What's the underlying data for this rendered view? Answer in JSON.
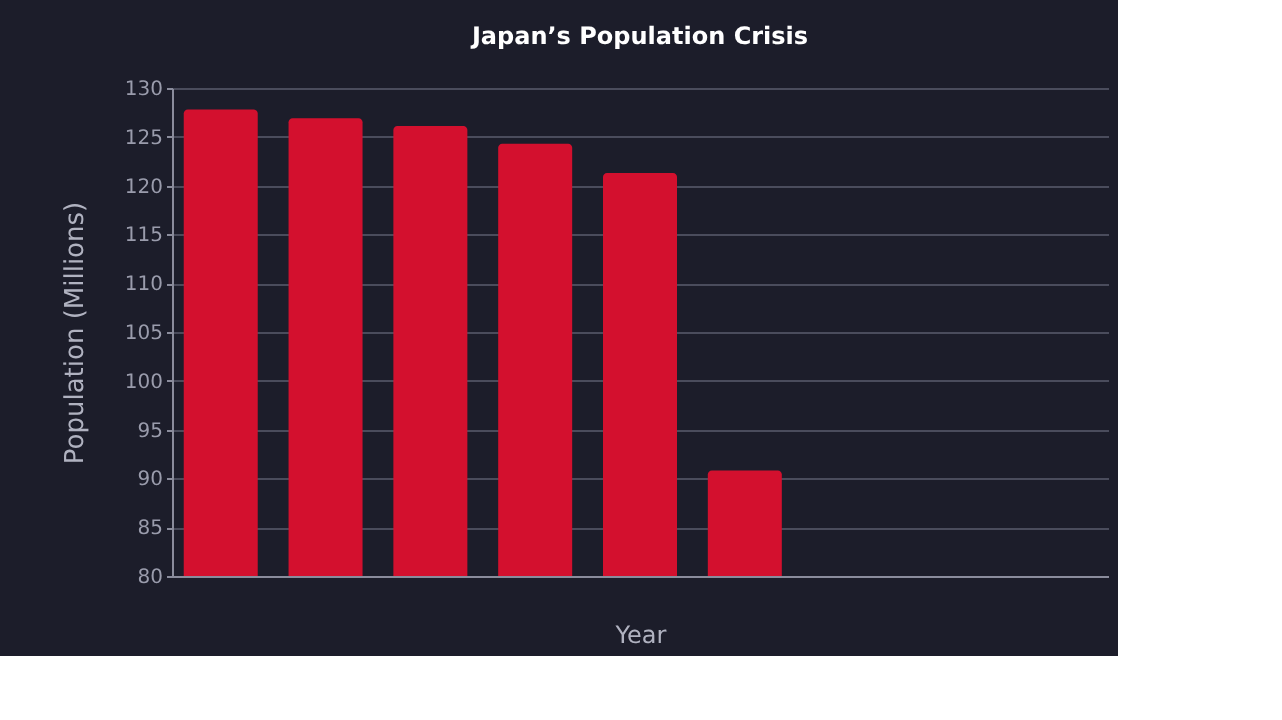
{
  "chart_data": {
    "type": "bar",
    "title": "Japan’s Population Crisis",
    "xlabel": "Year",
    "ylabel": "Population (Millions)",
    "categories": [
      null,
      null,
      null,
      null,
      null,
      null,
      null,
      null,
      null
    ],
    "values": [
      127.8,
      126.9,
      126.1,
      124.3,
      121.3,
      90.8,
      null,
      null,
      null
    ],
    "color": "#d3102e",
    "ylim": [
      80,
      130
    ],
    "yticks": [
      80,
      85,
      90,
      95,
      100,
      105,
      110,
      115,
      120,
      125,
      130
    ],
    "grid": "y"
  }
}
